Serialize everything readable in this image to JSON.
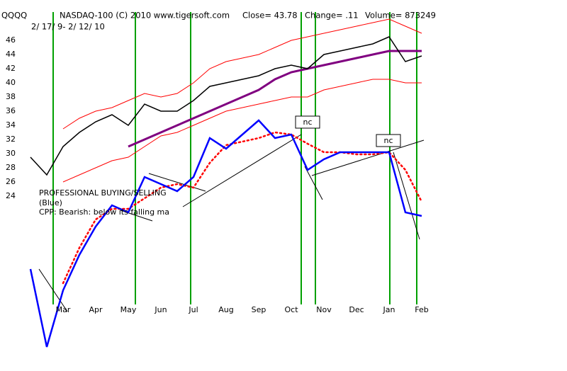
{
  "chart_data": {
    "type": "line",
    "ticker": "QQQQ",
    "title": "NASDAQ-100 (C) 2010 www.tigersoft.com",
    "close": "Close= 43.78",
    "change": "Change= .11",
    "volume": "Volume= 873249",
    "subtitle": "2/ 17/ 9- 2/ 12/ 10",
    "annotations": [
      "PROFESSIONAL BUYING/SELLING",
      "(Blue)",
      "CPP: Bearish: below its falling ma",
      "nc",
      "nc"
    ],
    "categories": [
      null,
      null,
      "Mar",
      null,
      "Apr",
      null,
      "May",
      null,
      "Jun",
      null,
      "Jul",
      null,
      "Aug",
      null,
      "Sep",
      null,
      "Oct",
      null,
      "Nov",
      null,
      "Dec",
      null,
      "Jan",
      null,
      "Feb"
    ],
    "ylim": [
      0,
      50
    ],
    "yticks": [
      24,
      26,
      28,
      30,
      32,
      34,
      36,
      38,
      40,
      42,
      44,
      46
    ],
    "series": [
      {
        "color": "#ff0000",
        "width": 1,
        "values": [
          null,
          null,
          33.5,
          35,
          36,
          36.5,
          37.5,
          38.5,
          38,
          38.5,
          40,
          42,
          43,
          43.5,
          44,
          45,
          46,
          46.5,
          47,
          47.5,
          48,
          48.5,
          49,
          48,
          47
        ]
      },
      {
        "color": "#ff0000",
        "width": 1,
        "values": [
          null,
          null,
          26,
          27,
          28,
          29,
          29.5,
          31,
          32.5,
          33,
          34,
          35,
          36,
          36.5,
          37,
          37.5,
          38,
          38,
          39,
          39.5,
          40,
          40.5,
          40.5,
          40,
          40
        ]
      },
      {
        "color": "#800080",
        "width": 3,
        "values": [
          null,
          null,
          null,
          null,
          null,
          null,
          31,
          32,
          33,
          34,
          35,
          36,
          37,
          38,
          39,
          40.5,
          41.5,
          42,
          42.5,
          43,
          43.5,
          44,
          44.5,
          44.5,
          44.5
        ]
      },
      {
        "color": "#000000",
        "width": 1.5,
        "values": [
          29.5,
          27,
          31,
          33,
          34.5,
          35.5,
          34,
          37,
          36,
          36,
          37.5,
          39.5,
          40,
          40.5,
          41,
          42,
          42.5,
          42,
          44,
          44.5,
          45,
          45.5,
          46.5,
          43,
          43.8
        ]
      },
      {
        "color": "#ff0000",
        "width": 2.5,
        "dotted": true,
        "values": [
          null,
          null,
          11.7,
          16.7,
          20.7,
          22.2,
          22.2,
          23.7,
          25.2,
          25.7,
          25.2,
          28.7,
          31.2,
          31.7,
          32.2,
          33.0,
          32.7,
          31.4,
          30.2,
          30.2,
          29.9,
          29.9,
          30.2,
          27.7,
          23.2
        ]
      },
      {
        "color": "#0000ff",
        "width": 2.5,
        "values": [
          13.7,
          2.7,
          10.7,
          15.7,
          19.7,
          22.7,
          21.7,
          26.7,
          25.7,
          24.7,
          26.7,
          32.2,
          30.7,
          32.7,
          34.7,
          32.2,
          32.7,
          27.7,
          29.2,
          30.2,
          30.2,
          30.2,
          30.2,
          21.7,
          21.2
        ]
      }
    ]
  }
}
